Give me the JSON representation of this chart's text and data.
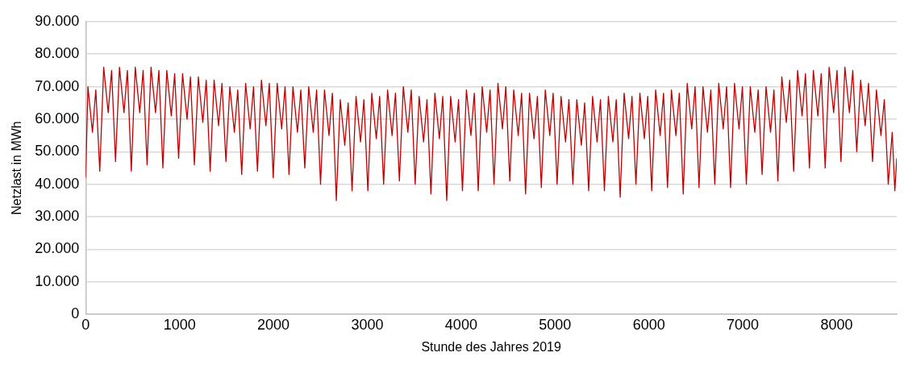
{
  "chart_data": {
    "type": "line",
    "xlabel": "Stunde des Jahres 2019",
    "ylabel": "Netzlast in MWh",
    "x": [
      0,
      24,
      72,
      108,
      150,
      192,
      240,
      276,
      318,
      360,
      408,
      444,
      486,
      528,
      576,
      612,
      654,
      696,
      744,
      780,
      822,
      864,
      912,
      948,
      990,
      1032,
      1080,
      1116,
      1158,
      1200,
      1248,
      1284,
      1326,
      1368,
      1416,
      1452,
      1494,
      1536,
      1584,
      1620,
      1662,
      1704,
      1752,
      1788,
      1830,
      1872,
      1920,
      1956,
      1998,
      2040,
      2088,
      2124,
      2166,
      2208,
      2256,
      2292,
      2334,
      2376,
      2424,
      2460,
      2502,
      2544,
      2592,
      2628,
      2670,
      2712,
      2760,
      2796,
      2838,
      2880,
      2928,
      2964,
      3006,
      3048,
      3096,
      3132,
      3174,
      3216,
      3264,
      3300,
      3342,
      3384,
      3432,
      3468,
      3510,
      3552,
      3600,
      3636,
      3678,
      3720,
      3768,
      3804,
      3846,
      3888,
      3936,
      3972,
      4014,
      4056,
      4104,
      4140,
      4182,
      4224,
      4272,
      4308,
      4350,
      4392,
      4440,
      4476,
      4518,
      4560,
      4608,
      4644,
      4686,
      4728,
      4776,
      4812,
      4854,
      4896,
      4944,
      4980,
      5022,
      5064,
      5112,
      5148,
      5190,
      5232,
      5280,
      5316,
      5358,
      5400,
      5448,
      5484,
      5526,
      5568,
      5616,
      5652,
      5694,
      5736,
      5784,
      5820,
      5862,
      5904,
      5952,
      5988,
      6030,
      6072,
      6120,
      6156,
      6198,
      6240,
      6288,
      6324,
      6366,
      6408,
      6456,
      6492,
      6534,
      6576,
      6624,
      6660,
      6702,
      6744,
      6792,
      6828,
      6870,
      6912,
      6960,
      6996,
      7038,
      7080,
      7128,
      7164,
      7206,
      7248,
      7296,
      7332,
      7374,
      7416,
      7464,
      7500,
      7542,
      7584,
      7632,
      7668,
      7710,
      7752,
      7800,
      7836,
      7878,
      7920,
      7968,
      8004,
      8046,
      8088,
      8136,
      8172,
      8214,
      8256,
      8304,
      8340,
      8382,
      8424,
      8472,
      8508,
      8550,
      8592,
      8620,
      8640
    ],
    "series": [
      {
        "color": "#c00000",
        "values": [
          42000,
          70000,
          56000,
          69000,
          44000,
          76000,
          62000,
          75000,
          47000,
          76000,
          62000,
          75000,
          44000,
          76000,
          62000,
          75000,
          46000,
          76000,
          62000,
          75000,
          45000,
          75000,
          61000,
          74000,
          48000,
          74000,
          60000,
          73000,
          46000,
          73000,
          59000,
          72000,
          44000,
          72000,
          58000,
          71000,
          47000,
          70000,
          56000,
          69000,
          43000,
          71000,
          57000,
          70000,
          44000,
          72000,
          58000,
          71000,
          42000,
          71000,
          57000,
          70000,
          43000,
          70000,
          56000,
          69000,
          45000,
          70000,
          56000,
          69000,
          40000,
          69000,
          55000,
          68000,
          35000,
          66000,
          52000,
          65000,
          38000,
          67000,
          53000,
          66000,
          38000,
          68000,
          54000,
          67000,
          40000,
          69000,
          55000,
          68000,
          41000,
          70000,
          56000,
          69000,
          40000,
          67000,
          53000,
          66000,
          37000,
          68000,
          54000,
          67000,
          35000,
          67000,
          53000,
          66000,
          38000,
          69000,
          55000,
          68000,
          38000,
          70000,
          56000,
          69000,
          40000,
          71000,
          57000,
          70000,
          41000,
          69000,
          55000,
          68000,
          37000,
          68000,
          54000,
          67000,
          39000,
          69000,
          55000,
          68000,
          40000,
          67000,
          53000,
          66000,
          40000,
          66000,
          52000,
          65000,
          38000,
          67000,
          53000,
          66000,
          38000,
          67000,
          53000,
          66000,
          36000,
          68000,
          54000,
          67000,
          40000,
          68000,
          54000,
          67000,
          38000,
          69000,
          55000,
          68000,
          39000,
          69000,
          55000,
          68000,
          37000,
          71000,
          57000,
          70000,
          39000,
          70000,
          56000,
          69000,
          40000,
          71000,
          57000,
          70000,
          39000,
          71000,
          57000,
          70000,
          40000,
          70000,
          56000,
          69000,
          43000,
          70000,
          56000,
          69000,
          41000,
          73000,
          59000,
          72000,
          44000,
          75000,
          61000,
          74000,
          45000,
          75000,
          61000,
          74000,
          45000,
          76000,
          62000,
          75000,
          47000,
          76000,
          62000,
          75000,
          50000,
          72000,
          58000,
          71000,
          47000,
          69000,
          55000,
          66000,
          40000,
          56000,
          38000,
          48000
        ]
      }
    ],
    "xlim": [
      0,
      8640
    ],
    "xticks": [
      0,
      1000,
      2000,
      3000,
      4000,
      5000,
      6000,
      7000,
      8000
    ],
    "ylim": [
      0,
      90000
    ],
    "yticks": [
      {
        "value": 0,
        "label": "0"
      },
      {
        "value": 10000,
        "label": "10.000"
      },
      {
        "value": 20000,
        "label": "20.000"
      },
      {
        "value": 30000,
        "label": "30.000"
      },
      {
        "value": 40000,
        "label": "40.000"
      },
      {
        "value": 50000,
        "label": "50.000"
      },
      {
        "value": 60000,
        "label": "60.000"
      },
      {
        "value": 70000,
        "label": "70.000"
      },
      {
        "value": 80000,
        "label": "80.000"
      },
      {
        "value": 90000,
        "label": "90.000"
      }
    ],
    "grid": "y",
    "legend": false,
    "marker": "none",
    "line_style": "solid"
  }
}
